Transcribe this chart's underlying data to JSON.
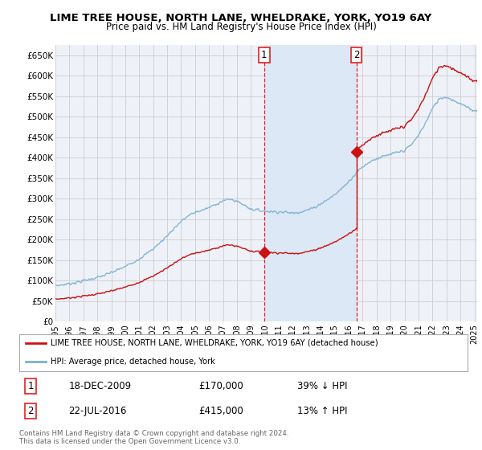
{
  "title": "LIME TREE HOUSE, NORTH LANE, WHELDRAKE, YORK, YO19 6AY",
  "subtitle": "Price paid vs. HM Land Registry's House Price Index (HPI)",
  "ylim": [
    0,
    675000
  ],
  "yticks": [
    0,
    50000,
    100000,
    150000,
    200000,
    250000,
    300000,
    350000,
    400000,
    450000,
    500000,
    550000,
    600000,
    650000
  ],
  "ytick_labels": [
    "£0",
    "£50K",
    "£100K",
    "£150K",
    "£200K",
    "£250K",
    "£300K",
    "£350K",
    "£400K",
    "£450K",
    "£500K",
    "£550K",
    "£600K",
    "£650K"
  ],
  "hpi_color": "#7bafd4",
  "sale_color": "#cc1111",
  "vline_color": "#dd2222",
  "grid_color": "#cccccc",
  "bg_color": "#eef2f8",
  "shade_color": "#dce8f5",
  "sale1_x": 2009.95,
  "sale1_y": 170000,
  "sale2_x": 2016.55,
  "sale2_y": 415000,
  "xlim_left": 1995.0,
  "xlim_right": 2025.2,
  "legend_sale": "LIME TREE HOUSE, NORTH LANE, WHELDRAKE, YORK, YO19 6AY (detached house)",
  "legend_hpi": "HPI: Average price, detached house, York",
  "note1_date": "18-DEC-2009",
  "note1_price": "£170,000",
  "note1_hpi": "39% ↓ HPI",
  "note2_date": "22-JUL-2016",
  "note2_price": "£415,000",
  "note2_hpi": "13% ↑ HPI",
  "footer": "Contains HM Land Registry data © Crown copyright and database right 2024.\nThis data is licensed under the Open Government Licence v3.0.",
  "hpi_years": [
    1995,
    1995.5,
    1996,
    1996.5,
    1997,
    1997.5,
    1998,
    1998.5,
    1999,
    1999.5,
    2000,
    2000.5,
    2001,
    2001.5,
    2002,
    2002.5,
    2003,
    2003.5,
    2004,
    2004.5,
    2005,
    2005.5,
    2006,
    2006.5,
    2007,
    2007.5,
    2008,
    2008.5,
    2009,
    2009.5,
    2010,
    2010.5,
    2011,
    2011.5,
    2012,
    2012.5,
    2013,
    2013.5,
    2014,
    2014.5,
    2015,
    2015.5,
    2016,
    2016.5,
    2017,
    2017.5,
    2018,
    2018.5,
    2019,
    2019.5,
    2020,
    2020.5,
    2021,
    2021.5,
    2022,
    2022.5,
    2023,
    2023.5,
    2024,
    2024.5,
    2025
  ],
  "hpi_vals": [
    88000,
    90000,
    93000,
    96000,
    100000,
    104000,
    108000,
    113000,
    120000,
    127000,
    135000,
    144000,
    154000,
    165000,
    178000,
    193000,
    210000,
    228000,
    245000,
    258000,
    267000,
    272000,
    278000,
    287000,
    295000,
    299000,
    294000,
    285000,
    275000,
    272000,
    270000,
    269000,
    268000,
    267000,
    265000,
    268000,
    272000,
    278000,
    288000,
    298000,
    310000,
    325000,
    342000,
    362000,
    378000,
    390000,
    398000,
    403000,
    408000,
    413000,
    418000,
    432000,
    455000,
    485000,
    520000,
    545000,
    548000,
    540000,
    532000,
    522000,
    515000
  ],
  "prop_scale1": 0.578,
  "prop_scale2": 1.145
}
